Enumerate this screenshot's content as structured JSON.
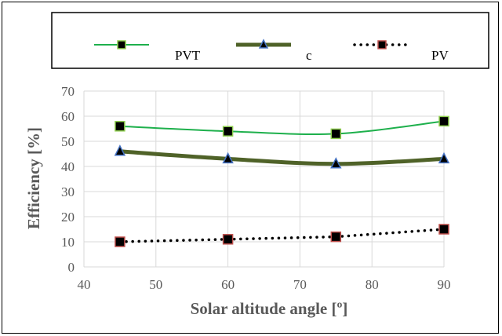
{
  "chart_data": {
    "type": "line",
    "x": [
      45,
      60,
      75,
      90
    ],
    "series": [
      {
        "name": "PVT",
        "values": [
          56,
          54,
          53,
          58
        ],
        "color": "#1eb04c",
        "marker_fill": "#000000",
        "marker_stroke": "#8fd14f",
        "marker": "square",
        "line_style": "solid"
      },
      {
        "name": "c",
        "values": [
          46,
          43,
          41,
          43
        ],
        "color": "#4f6228",
        "marker_fill": "#000000",
        "marker_stroke": "#4472c4",
        "marker": "triangle",
        "line_style": "solid-thick"
      },
      {
        "name": "PV",
        "values": [
          10,
          11,
          12,
          15
        ],
        "color": "#000000",
        "marker_fill": "#000000",
        "marker_stroke": "#c0504d",
        "marker": "square",
        "line_style": "dotted"
      }
    ],
    "xlabel": "Solar altitude angle [º]",
    "ylabel": "Efficiency [%]",
    "xlim": [
      40,
      90
    ],
    "ylim": [
      0,
      70
    ],
    "x_ticks": [
      "40",
      "50",
      "60",
      "70",
      "80",
      "90"
    ],
    "y_ticks": [
      "0",
      "10",
      "20",
      "30",
      "40",
      "50",
      "60",
      "70"
    ],
    "grid": true,
    "legend_position": "top"
  }
}
